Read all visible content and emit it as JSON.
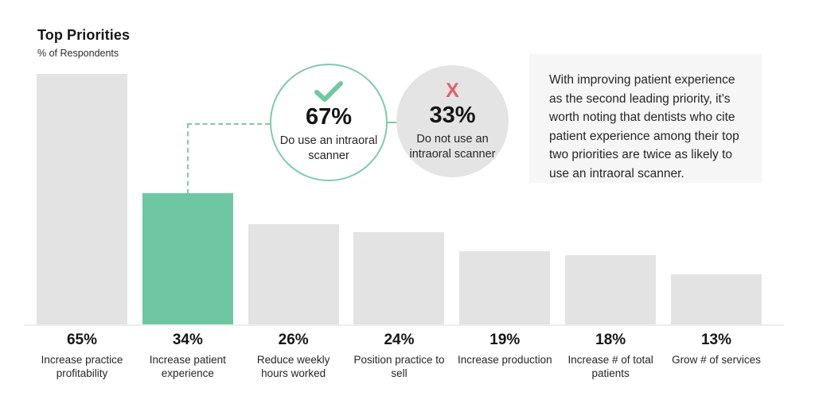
{
  "title": "Top Priorities",
  "subtitle": "% of Respondents",
  "chart_data": {
    "type": "bar",
    "title": "Top Priorities",
    "ylabel": "% of Respondents",
    "categories": [
      "Increase practice profitability",
      "Increase patient experience",
      "Reduce weekly hours worked",
      "Position practice to sell",
      "Increase production",
      "Increase # of total patients",
      "Grow # of services"
    ],
    "values": [
      65,
      34,
      26,
      24,
      19,
      18,
      13
    ],
    "value_labels": [
      "65%",
      "34%",
      "26%",
      "24%",
      "19%",
      "18%",
      "13%"
    ],
    "highlight_index": 1,
    "highlight_category": "Increase patient experience",
    "ylim": [
      0,
      65
    ],
    "grid": false,
    "legend": false,
    "bar_color": "#e3e3e3",
    "highlight_color": "#6ec7a2"
  },
  "callouts": {
    "use_scanner": {
      "value": "67%",
      "label": "Do use an intraoral scanner",
      "icon": "check-icon"
    },
    "not_use_scanner": {
      "value": "33%",
      "label": "Do not use an intraoral scanner",
      "icon": "x-icon",
      "icon_glyph": "X"
    }
  },
  "note": "With improving patient experience as the second leading priority, it's worth noting that dentists who cite patient experience among their top two priorities are twice as likely to use an intraoral scanner.",
  "colors": {
    "accent_green": "#6ec7a2",
    "outline_green": "#7ecba9",
    "bar_gray": "#e3e3e3",
    "circle_gray": "#e4e4e4",
    "note_bg": "#f6f6f6",
    "x_red": "#e25f6b",
    "text_dark": "#1e1e1e"
  }
}
